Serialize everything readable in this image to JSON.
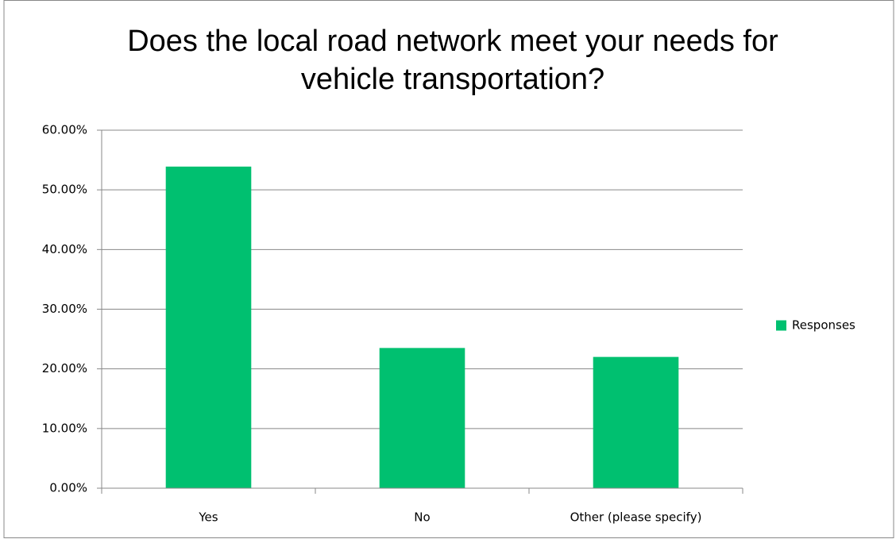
{
  "chart_data": {
    "type": "bar",
    "title": "Does the local road network meet your needs for vehicle transportation?",
    "categories": [
      "Yes",
      "No",
      "Other (please specify)"
    ],
    "series": [
      {
        "name": "Responses",
        "color": "#00c070",
        "values": [
          53.9,
          23.5,
          22.0
        ]
      }
    ],
    "ylim": [
      0,
      60
    ],
    "yticks": [
      {
        "value": 0,
        "label": "0.00%"
      },
      {
        "value": 10,
        "label": "10.00%"
      },
      {
        "value": 20,
        "label": "20.00%"
      },
      {
        "value": 30,
        "label": "30.00%"
      },
      {
        "value": 40,
        "label": "40.00%"
      },
      {
        "value": 50,
        "label": "50.00%"
      },
      {
        "value": 60,
        "label": "60.00%"
      }
    ],
    "grid": true,
    "legend": "right"
  }
}
